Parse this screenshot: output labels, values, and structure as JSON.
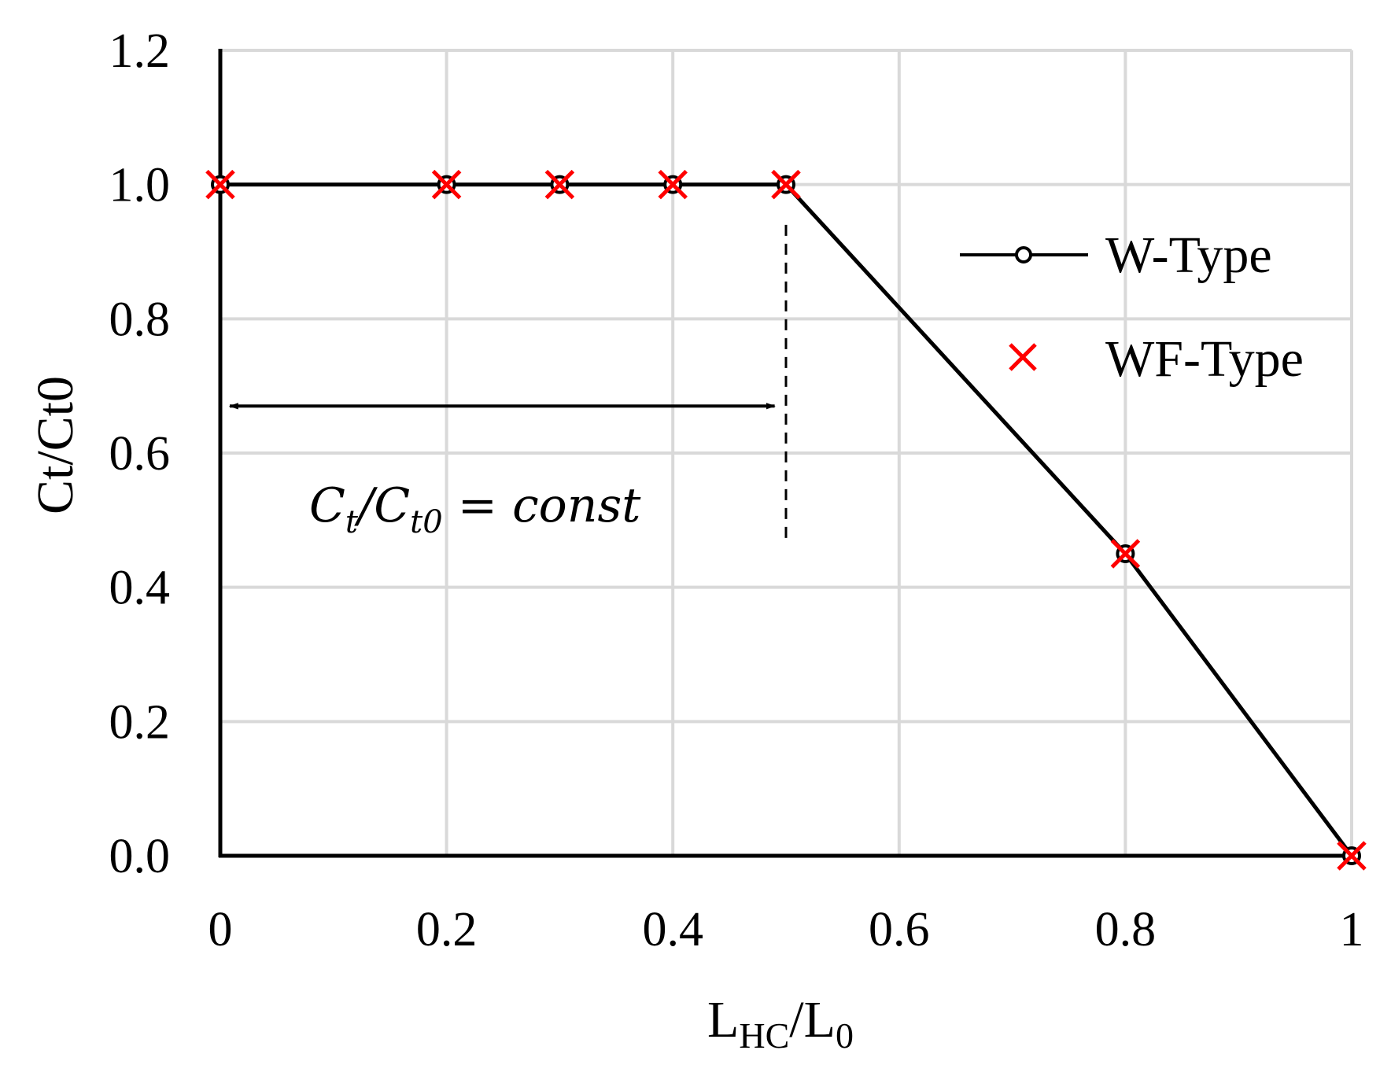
{
  "chart_data": {
    "type": "line",
    "title": "",
    "xlabel": {
      "main": "L",
      "sub1": "HC",
      "sep": "/L",
      "sub2": "0"
    },
    "ylabel": "Ct/Ct0",
    "xlim": [
      0,
      1
    ],
    "ylim": [
      0,
      1.2
    ],
    "x_ticks": [
      {
        "v": 0,
        "label": "0"
      },
      {
        "v": 0.2,
        "label": "0.2"
      },
      {
        "v": 0.4,
        "label": "0.4"
      },
      {
        "v": 0.6,
        "label": "0.6"
      },
      {
        "v": 0.8,
        "label": "0.8"
      },
      {
        "v": 1,
        "label": "1"
      }
    ],
    "y_ticks": [
      {
        "v": 0,
        "label": "0.0"
      },
      {
        "v": 0.2,
        "label": "0.2"
      },
      {
        "v": 0.4,
        "label": "0.4"
      },
      {
        "v": 0.6,
        "label": "0.6"
      },
      {
        "v": 0.8,
        "label": "0.8"
      },
      {
        "v": 1.0,
        "label": "1.0"
      },
      {
        "v": 1.2,
        "label": "1.2"
      }
    ],
    "grid": true,
    "legend_position": "right",
    "series": [
      {
        "name": "W-Type",
        "color": "#000000",
        "marker": "circle",
        "x": [
          0,
          0.2,
          0.3,
          0.4,
          0.5,
          0.8,
          1
        ],
        "y": [
          1.0,
          1.0,
          1.0,
          1.0,
          1.0,
          0.45,
          0.0
        ]
      },
      {
        "name": "WF-Type",
        "color": "#ff0000",
        "marker": "x",
        "x": [
          0,
          0.2,
          0.3,
          0.4,
          0.5,
          0.8,
          1
        ],
        "y": [
          1.0,
          1.0,
          1.0,
          1.0,
          1.0,
          0.45,
          0.0
        ]
      }
    ],
    "annotations": {
      "dashed_line": {
        "x": 0.5,
        "y_from": 0.94,
        "y_to": 0.47
      },
      "arrow": {
        "x_from": 0.0,
        "x_to": 0.49,
        "y": 0.67
      },
      "text": {
        "C1": "C",
        "s1": "t",
        "mid": "/C",
        "s2": "t0",
        "rest": " = const"
      }
    }
  }
}
